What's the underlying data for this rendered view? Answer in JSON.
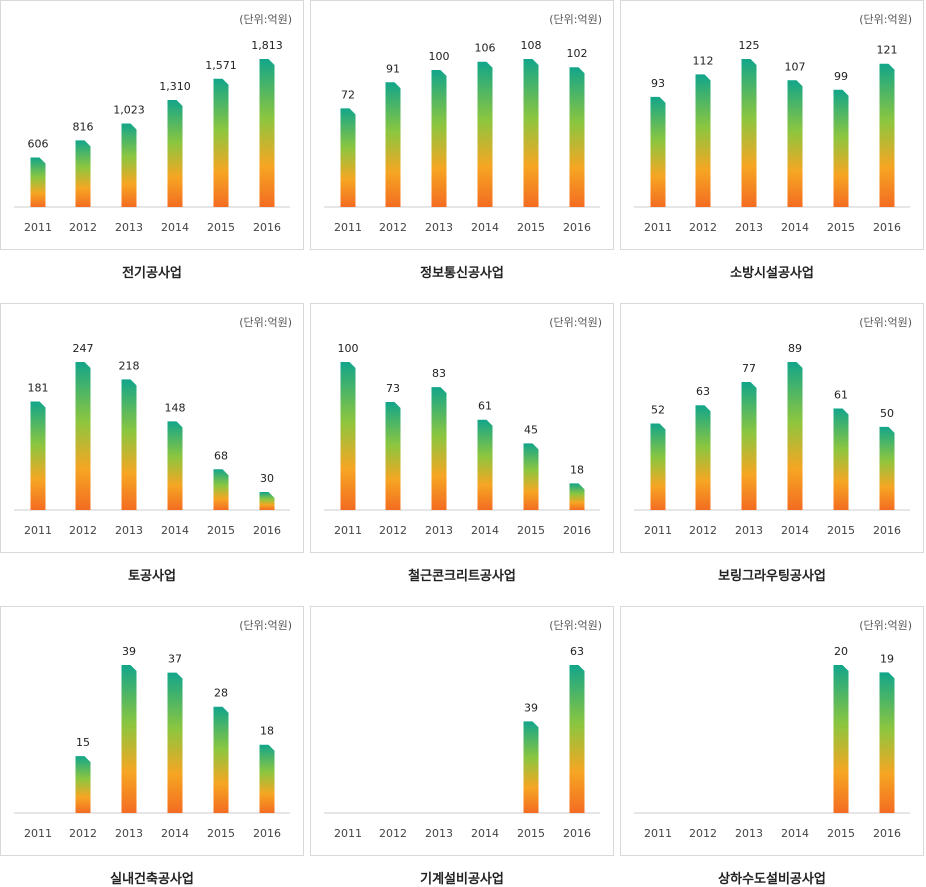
{
  "unit_label": "(단위:억원)",
  "years": [
    "2011",
    "2012",
    "2013",
    "2014",
    "2015",
    "2016"
  ],
  "chart_data": [
    {
      "type": "bar",
      "title": "전기공사업",
      "categories": [
        "2011",
        "2012",
        "2013",
        "2014",
        "2015",
        "2016"
      ],
      "values": [
        606,
        816,
        1023,
        1310,
        1571,
        1813
      ],
      "labels": [
        "606",
        "816",
        "1,023",
        "1,310",
        "1,571",
        "1,813"
      ],
      "ylim": [
        0,
        1813
      ]
    },
    {
      "type": "bar",
      "title": "정보통신공사업",
      "categories": [
        "2011",
        "2012",
        "2013",
        "2014",
        "2015",
        "2016"
      ],
      "values": [
        72,
        91,
        100,
        106,
        108,
        102
      ],
      "labels": [
        "72",
        "91",
        "100",
        "106",
        "108",
        "102"
      ],
      "ylim": [
        0,
        108
      ]
    },
    {
      "type": "bar",
      "title": "소방시설공사업",
      "categories": [
        "2011",
        "2012",
        "2013",
        "2014",
        "2015",
        "2016"
      ],
      "values": [
        93,
        112,
        125,
        107,
        99,
        121
      ],
      "labels": [
        "93",
        "112",
        "125",
        "107",
        "99",
        "121"
      ],
      "ylim": [
        0,
        125
      ]
    },
    {
      "type": "bar",
      "title": "토공사업",
      "categories": [
        "2011",
        "2012",
        "2013",
        "2014",
        "2015",
        "2016"
      ],
      "values": [
        181,
        247,
        218,
        148,
        68,
        30
      ],
      "labels": [
        "181",
        "247",
        "218",
        "148",
        "68",
        "30"
      ],
      "ylim": [
        0,
        247
      ]
    },
    {
      "type": "bar",
      "title": "철근콘크리트공사업",
      "categories": [
        "2011",
        "2012",
        "2013",
        "2014",
        "2015",
        "2016"
      ],
      "values": [
        100,
        73,
        83,
        61,
        45,
        18
      ],
      "labels": [
        "100",
        "73",
        "83",
        "61",
        "45",
        "18"
      ],
      "ylim": [
        0,
        100
      ]
    },
    {
      "type": "bar",
      "title": "보링그라우팅공사업",
      "categories": [
        "2011",
        "2012",
        "2013",
        "2014",
        "2015",
        "2016"
      ],
      "values": [
        52,
        63,
        77,
        89,
        61,
        50
      ],
      "labels": [
        "52",
        "63",
        "77",
        "89",
        "61",
        "50"
      ],
      "ylim": [
        0,
        89
      ]
    },
    {
      "type": "bar",
      "title": "실내건축공사업",
      "categories": [
        "2011",
        "2012",
        "2013",
        "2014",
        "2015",
        "2016"
      ],
      "values": [
        null,
        15,
        39,
        37,
        28,
        18
      ],
      "labels": [
        "",
        "15",
        "39",
        "37",
        "28",
        "18"
      ],
      "ylim": [
        0,
        39
      ]
    },
    {
      "type": "bar",
      "title": "기계설비공사업",
      "categories": [
        "2011",
        "2012",
        "2013",
        "2014",
        "2015",
        "2016"
      ],
      "values": [
        null,
        null,
        null,
        null,
        39,
        63
      ],
      "labels": [
        "",
        "",
        "",
        "",
        "39",
        "63"
      ],
      "ylim": [
        0,
        63
      ]
    },
    {
      "type": "bar",
      "title": "상하수도설비공사업",
      "categories": [
        "2011",
        "2012",
        "2013",
        "2014",
        "2015",
        "2016"
      ],
      "values": [
        null,
        null,
        null,
        null,
        20,
        19
      ],
      "labels": [
        "",
        "",
        "",
        "",
        "20",
        "19"
      ],
      "ylim": [
        0,
        20
      ]
    }
  ]
}
